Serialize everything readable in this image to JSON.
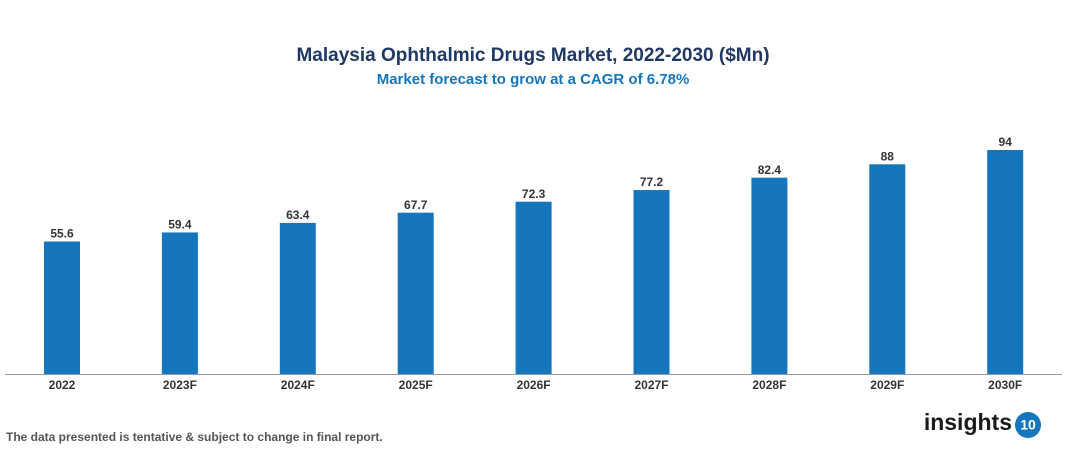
{
  "chart_data": {
    "type": "bar",
    "title": "Malaysia Ophthalmic Drugs Market, 2022-2030 ($Mn)",
    "subtitle": "Market forecast to grow at a CAGR of 6.78%",
    "categories": [
      "2022",
      "2023F",
      "2024F",
      "2025F",
      "2026F",
      "2027F",
      "2028F",
      "2029F",
      "2030F"
    ],
    "values": [
      55.6,
      59.4,
      63.4,
      67.7,
      72.3,
      77.2,
      82.4,
      88,
      94
    ],
    "color": "#1576be"
  },
  "footnote": "The data presented is tentative & subject to change in final report.",
  "logo": {
    "text": "insights",
    "badge": "10"
  }
}
